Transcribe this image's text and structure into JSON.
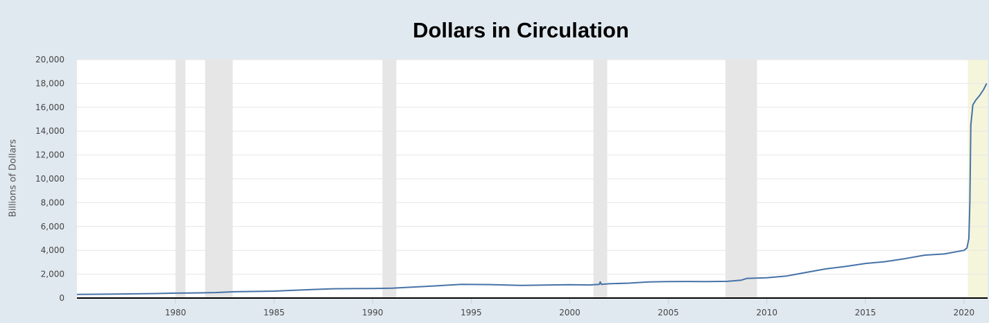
{
  "chart_data": {
    "type": "line",
    "title": "Dollars in Circulation",
    "xlabel": "",
    "ylabel": "Billions of Dollars",
    "xlim": [
      1975,
      2021.2
    ],
    "ylim": [
      0,
      20000
    ],
    "y_ticks": [
      0,
      2000,
      4000,
      6000,
      8000,
      10000,
      12000,
      14000,
      16000,
      18000,
      20000
    ],
    "y_tick_labels": [
      "0",
      "2,000",
      "4,000",
      "6,000",
      "8,000",
      "10,000",
      "12,000",
      "14,000",
      "16,000",
      "18,000",
      "20,000"
    ],
    "x_ticks": [
      1980,
      1985,
      1990,
      1995,
      2000,
      2005,
      2010,
      2015,
      2020
    ],
    "x_tick_labels": [
      "1980",
      "1985",
      "1990",
      "1995",
      "2000",
      "2005",
      "2010",
      "2015",
      "2020"
    ],
    "grid": "horizontal",
    "recessions": [
      [
        1980.0,
        1980.5
      ],
      [
        1981.5,
        1982.9
      ],
      [
        1990.5,
        1991.2
      ],
      [
        2001.2,
        2001.9
      ],
      [
        2007.9,
        2009.5
      ]
    ],
    "highlight": [
      2020.2,
      2021.2
    ],
    "series": [
      {
        "color": "#4572a7",
        "x": [
          1975,
          1977,
          1979,
          1980,
          1981,
          1982,
          1983,
          1985,
          1987,
          1988,
          1990,
          1991,
          1993,
          1994.5,
          1996,
          1997.5,
          1999,
          2000,
          2001,
          2001.5,
          2001.55,
          2001.6,
          2002,
          2003,
          2004,
          2005,
          2006,
          2007,
          2008,
          2008.7,
          2009,
          2010,
          2011,
          2011.5,
          2012,
          2013,
          2014,
          2015,
          2016,
          2017,
          2018,
          2019,
          2020.0,
          2020.15,
          2020.25,
          2020.3,
          2020.35,
          2020.45,
          2020.6,
          2020.8,
          2021.0,
          2021.15
        ],
        "y": [
          300,
          330,
          380,
          410,
          430,
          460,
          530,
          580,
          720,
          780,
          800,
          830,
          1000,
          1150,
          1130,
          1060,
          1100,
          1120,
          1100,
          1150,
          1350,
          1150,
          1200,
          1250,
          1350,
          1380,
          1390,
          1380,
          1400,
          1500,
          1650,
          1700,
          1850,
          2000,
          2150,
          2450,
          2650,
          2900,
          3050,
          3300,
          3600,
          3700,
          4000,
          4200,
          5000,
          8000,
          14500,
          16200,
          16600,
          17000,
          17500,
          18000
        ]
      }
    ]
  }
}
